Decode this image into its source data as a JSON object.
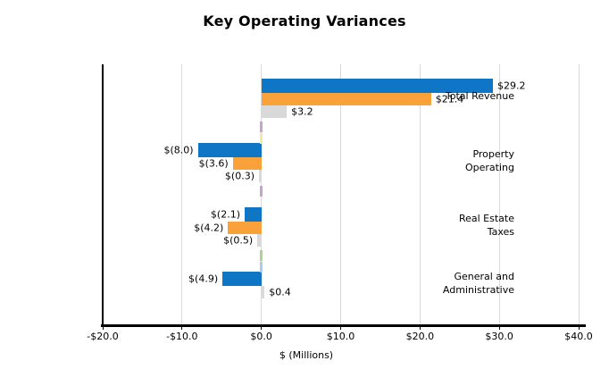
{
  "page": {
    "background": "#ffffff"
  },
  "chart_data": {
    "type": "bar",
    "orientation": "horizontal",
    "title": "Key Operating Variances",
    "xlabel": "$ (Millions)",
    "xlim": [
      -20,
      40
    ],
    "grid": true,
    "legend": false,
    "x_ticks": [
      {
        "value": -20,
        "label": "-$20.0"
      },
      {
        "value": -10,
        "label": "-$10.0"
      },
      {
        "value": 0,
        "label": "$0.0"
      },
      {
        "value": 10,
        "label": "$10.0"
      },
      {
        "value": 20,
        "label": "$20.0"
      },
      {
        "value": 30,
        "label": "$30.0"
      },
      {
        "value": 40,
        "label": "$40.0"
      }
    ],
    "categories": [
      {
        "label": "Total Revenue",
        "lines": [
          "Total Revenue"
        ]
      },
      {
        "label": "Property Operating",
        "lines": [
          "Property",
          "Operating"
        ]
      },
      {
        "label": "Real Estate Taxes",
        "lines": [
          "Real Estate",
          "Taxes"
        ]
      },
      {
        "label": "General and Administrative",
        "lines": [
          "General and",
          "Administrative"
        ]
      }
    ],
    "series": [
      {
        "name": "blue-series",
        "color": "#0F75C5",
        "values": [
          29.2,
          -8.0,
          -2.1,
          -4.9
        ],
        "labels": [
          "$29.2",
          "$(8.0)",
          "$(2.1)",
          "$(4.9)"
        ]
      },
      {
        "name": "orange-series",
        "color": "#F9A23B",
        "values": [
          21.4,
          -3.6,
          -4.2,
          null
        ],
        "labels": [
          "$21.4",
          "$(3.6)",
          "$(4.2)",
          null
        ]
      },
      {
        "name": "gray-series",
        "color": "#D9D9D9",
        "values": [
          3.2,
          -0.3,
          -0.5,
          0.4
        ],
        "labels": [
          "$3.2",
          "$(0.3)",
          "$(0.5)",
          "$0.4"
        ]
      }
    ],
    "minor_zero_marks": [
      {
        "category": 0,
        "row": 0,
        "color": "#C9A3D0"
      },
      {
        "category": 0,
        "row": 1,
        "color": "#F3E9A0"
      },
      {
        "category": 1,
        "row": 0,
        "color": "#C9A3D0"
      },
      {
        "category": 2,
        "row": 0,
        "color": "#ABD48E"
      },
      {
        "category": 2,
        "row": 1,
        "color": "#A9CCEC"
      }
    ],
    "axis_color": "#000000",
    "gridline_color": "#D9D9D9",
    "label_color": "#000000"
  }
}
